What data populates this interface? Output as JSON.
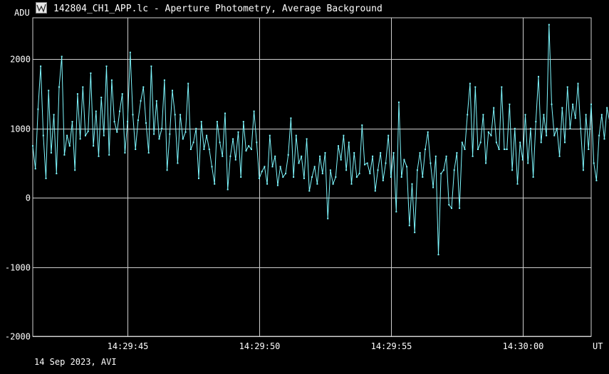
{
  "window": {
    "title": "142804_CH1_APP.lc - Aperture Photometry, Average Background",
    "icon": "lightcurve-app-icon"
  },
  "footer": {
    "text": "14 Sep 2023, AVI"
  },
  "colors": {
    "background": "#000000",
    "grid": "#cfcfcf",
    "series": "#7ff8ff",
    "text": "#ffffff"
  },
  "chart_data": {
    "type": "line",
    "title": "142804_CH1_APP.lc - Aperture Photometry, Average Background",
    "ylabel": "ADU",
    "xlabel": "UT",
    "ylim": [
      -2000,
      2600
    ],
    "xlim": [
      "14:29:41.4",
      "14:30:02.6"
    ],
    "grid": true,
    "yticks": [
      {
        "value": 2000,
        "label": "2000"
      },
      {
        "value": 1000,
        "label": "1000"
      },
      {
        "value": 0,
        "label": "0"
      },
      {
        "value": -1000,
        "label": "-1000"
      },
      {
        "value": -2000,
        "label": "-2000"
      }
    ],
    "xticks": [
      {
        "value": "14:29:45",
        "label": "14:29:45"
      },
      {
        "value": "14:29:50",
        "label": "14:29:50"
      },
      {
        "value": "14:29:55",
        "label": "14:29:55"
      },
      {
        "value": "14:30:00",
        "label": "14:30:00"
      }
    ],
    "series": [
      {
        "color": "#7ff8ff",
        "x_start": "14:29:41.4",
        "x_step_s": 0.1,
        "values": [
          750,
          420,
          1280,
          1900,
          900,
          280,
          1550,
          650,
          1200,
          350,
          1600,
          2040,
          620,
          900,
          750,
          1100,
          400,
          1500,
          850,
          1600,
          900,
          960,
          1800,
          750,
          1250,
          600,
          1450,
          900,
          1900,
          620,
          1700,
          1100,
          950,
          1250,
          1500,
          650,
          1100,
          2100,
          1200,
          700,
          1120,
          1400,
          1600,
          1080,
          650,
          1900,
          920,
          1400,
          850,
          1000,
          1700,
          400,
          920,
          1550,
          1200,
          500,
          1200,
          850,
          950,
          1650,
          700,
          800,
          1000,
          280,
          1100,
          700,
          900,
          700,
          450,
          200,
          1100,
          800,
          600,
          1220,
          120,
          600,
          850,
          550,
          950,
          300,
          1100,
          680,
          750,
          700,
          1250,
          800,
          280,
          380,
          450,
          200,
          900,
          450,
          600,
          180,
          450,
          300,
          350,
          620,
          1150,
          300,
          900,
          500,
          600,
          280,
          850,
          100,
          300,
          450,
          200,
          600,
          350,
          650,
          -300,
          400,
          200,
          300,
          750,
          550,
          900,
          400,
          800,
          200,
          650,
          300,
          350,
          1050,
          480,
          500,
          350,
          600,
          100,
          400,
          650,
          250,
          500,
          900,
          300,
          650,
          -200,
          1380,
          300,
          550,
          450,
          -400,
          200,
          -500,
          400,
          650,
          300,
          700,
          950,
          500,
          150,
          600,
          -820,
          350,
          400,
          600,
          -100,
          -150,
          400,
          650,
          -150,
          800,
          700,
          1200,
          1650,
          600,
          1600,
          700,
          800,
          1200,
          500,
          950,
          900,
          1300,
          800,
          700,
          1600,
          700,
          700,
          1350,
          400,
          1000,
          200,
          800,
          550,
          1200,
          500,
          1000,
          300,
          1100,
          1750,
          800,
          1200,
          900,
          2500,
          1350,
          900,
          1000,
          600,
          1300,
          800,
          1600,
          1000,
          1350,
          1150,
          1650,
          1000,
          400,
          1200,
          700,
          1350,
          500,
          250,
          900,
          1200,
          850,
          1300,
          1100,
          1000
        ]
      }
    ]
  }
}
